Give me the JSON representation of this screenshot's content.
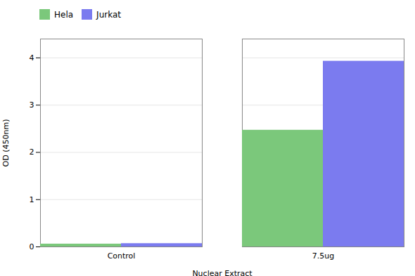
{
  "chart_data": {
    "type": "bar",
    "categories": [
      "Control",
      "7.5ug"
    ],
    "series": [
      {
        "name": "Hela",
        "color": "#7bc87b",
        "values": [
          0.06,
          2.47
        ]
      },
      {
        "name": "Jurkat",
        "color": "#7b7bef",
        "values": [
          0.07,
          3.93
        ]
      }
    ],
    "xlabel": "Nuclear Extract",
    "ylabel": "OD (450nm)",
    "ylim": [
      0,
      4.4
    ],
    "yticks": [
      0,
      1,
      2,
      3,
      4
    ],
    "grid": true,
    "legend": "upper left"
  }
}
